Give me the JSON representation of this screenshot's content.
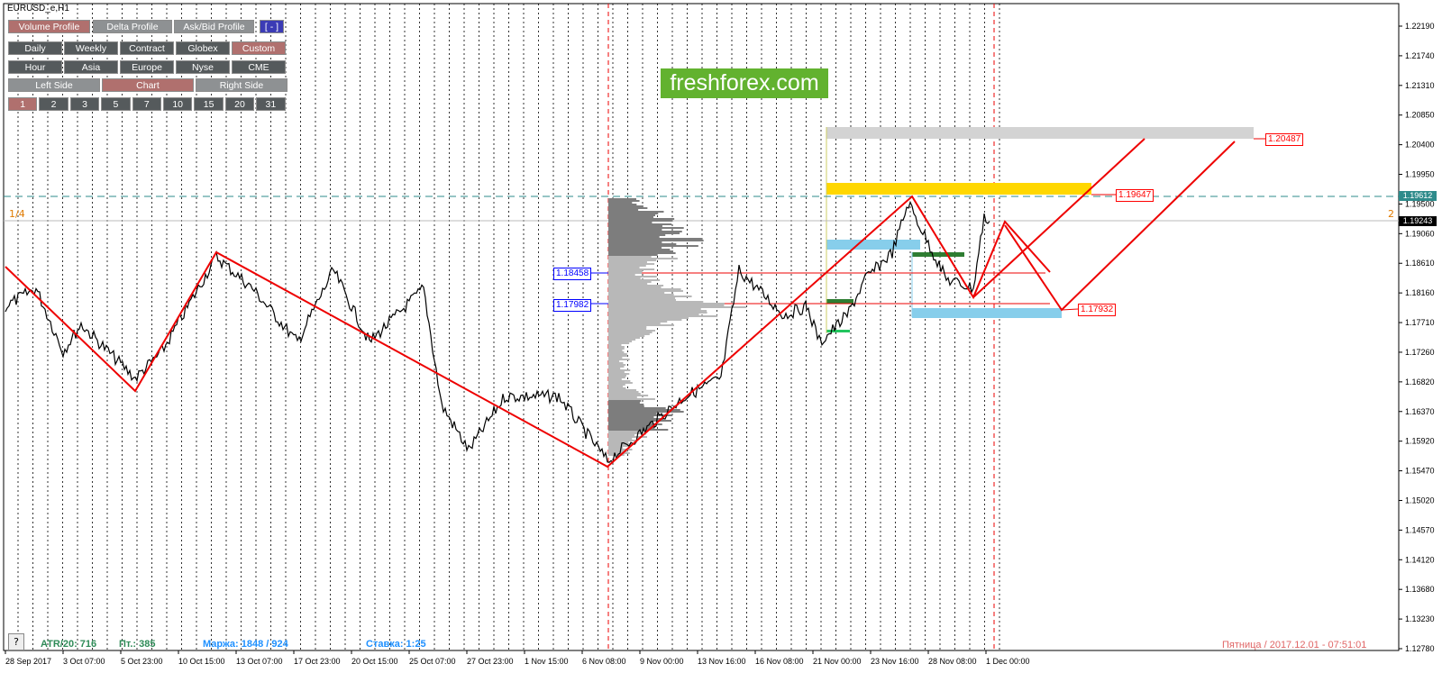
{
  "window": {
    "title": "EURUSD_e,H1"
  },
  "brand": {
    "text": "freshforex.com"
  },
  "toolbar": {
    "row1": [
      "Volume Profile",
      "Delta Profile",
      "Ask/Bid Profile",
      "[ - ]"
    ],
    "row2": [
      "Daily",
      "Weekly",
      "Contract",
      "Globex",
      "Custom"
    ],
    "row3": [
      "Hour",
      "Asia",
      "Europe",
      "Nyse",
      "CME"
    ],
    "row4": [
      "Left Side",
      "Chart",
      "Right Side"
    ],
    "row5": [
      "1",
      "2",
      "3",
      "5",
      "7",
      "10",
      "15",
      "20",
      "31"
    ]
  },
  "corner_labels": {
    "left": "1/4",
    "right": "2"
  },
  "price_axis": {
    "ticks": [
      "1.22190",
      "1.21740",
      "1.21310",
      "1.20850",
      "1.20400",
      "1.19950",
      "1.19500",
      "1.19060",
      "1.18610",
      "1.18160",
      "1.17710",
      "1.17260",
      "1.16820",
      "1.16370",
      "1.15920",
      "1.15470",
      "1.15020",
      "1.14570",
      "1.14120",
      "1.13680",
      "1.13230",
      "1.12780"
    ],
    "current_price": "1.19243",
    "teal_line_price": "1.19612"
  },
  "level_labels": {
    "blue1": "1.18458",
    "blue2": "1.17982",
    "red_top": "1.20487",
    "red_mid": "1.19647",
    "red_low": "1.17932"
  },
  "time_axis": [
    "28 Sep 2017",
    "3 Oct 07:00",
    "5 Oct 23:00",
    "10 Oct 15:00",
    "13 Oct 07:00",
    "17 Oct 23:00",
    "20 Oct 15:00",
    "25 Oct 07:00",
    "27 Oct 23:00",
    "1 Nov 15:00",
    "6 Nov 08:00",
    "9 Nov 00:00",
    "13 Nov 16:00",
    "16 Nov 08:00",
    "21 Nov 00:00",
    "23 Nov 16:00",
    "28 Nov 08:00",
    "1 Dec 00:00"
  ],
  "status_bar": {
    "help": "?",
    "atr": "ATR/20: 716",
    "points": "Пт.: 385",
    "margin": "Маржа: 1848 / 924",
    "rate": "Ставка: 1:25",
    "datetime": "Пятница  /  2017.12.01  -  07:51:01"
  },
  "colors": {
    "button_dark": "#555a5c",
    "button_active": "#b0706e",
    "zigzag": "#ff0000",
    "brand_green": "#62b22f",
    "gold_zone": "#ffd700",
    "blue_zone": "#87ceeb",
    "gray_zone": "#d3d3d3",
    "teal_dash": "#2e8b8b"
  }
}
